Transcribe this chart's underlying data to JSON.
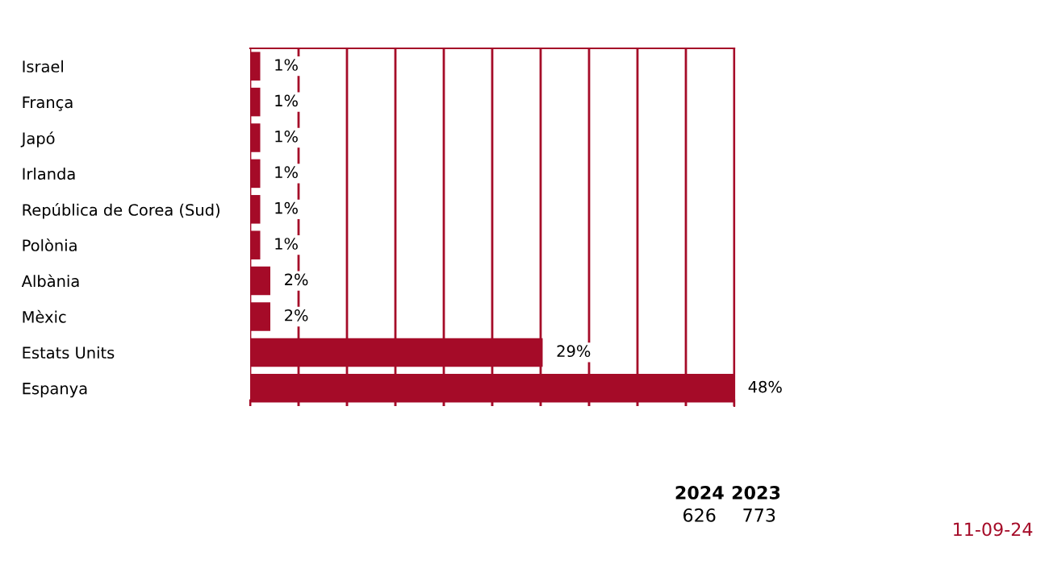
{
  "chart_data": {
    "type": "bar",
    "orientation": "horizontal",
    "categories": [
      "Israel",
      "França",
      "Japó",
      "Irlanda",
      "República de Corea (Sud)",
      "Polònia",
      "Albània",
      "Mèxic",
      "Estats Units",
      "Espanya"
    ],
    "values": [
      1,
      1,
      1,
      1,
      1,
      1,
      2,
      2,
      29,
      48
    ],
    "value_labels": [
      "1%",
      "1%",
      "1%",
      "1%",
      "1%",
      "1%",
      "2%",
      "2%",
      "29%",
      "48%"
    ],
    "color": "#a50b28",
    "xlim": [
      0,
      48
    ],
    "xticks": [
      {
        "value": 0,
        "label": null
      },
      {
        "value": 4.8,
        "label": null
      },
      {
        "value": 9.6,
        "label": null
      },
      {
        "value": 14.4,
        "label": null
      },
      {
        "value": 19.2,
        "label": null
      },
      {
        "value": 24,
        "label": null
      },
      {
        "value": 28.8,
        "label": null
      },
      {
        "value": 33.6,
        "label": null
      },
      {
        "value": 38.4,
        "label": null
      },
      {
        "value": 43.2,
        "label": null
      },
      {
        "value": 48,
        "label": null
      }
    ],
    "grid": "x",
    "tick_labels": "y",
    "annotations": [
      "2024",
      "2023",
      "626",
      "773",
      "11-09-24"
    ]
  }
}
